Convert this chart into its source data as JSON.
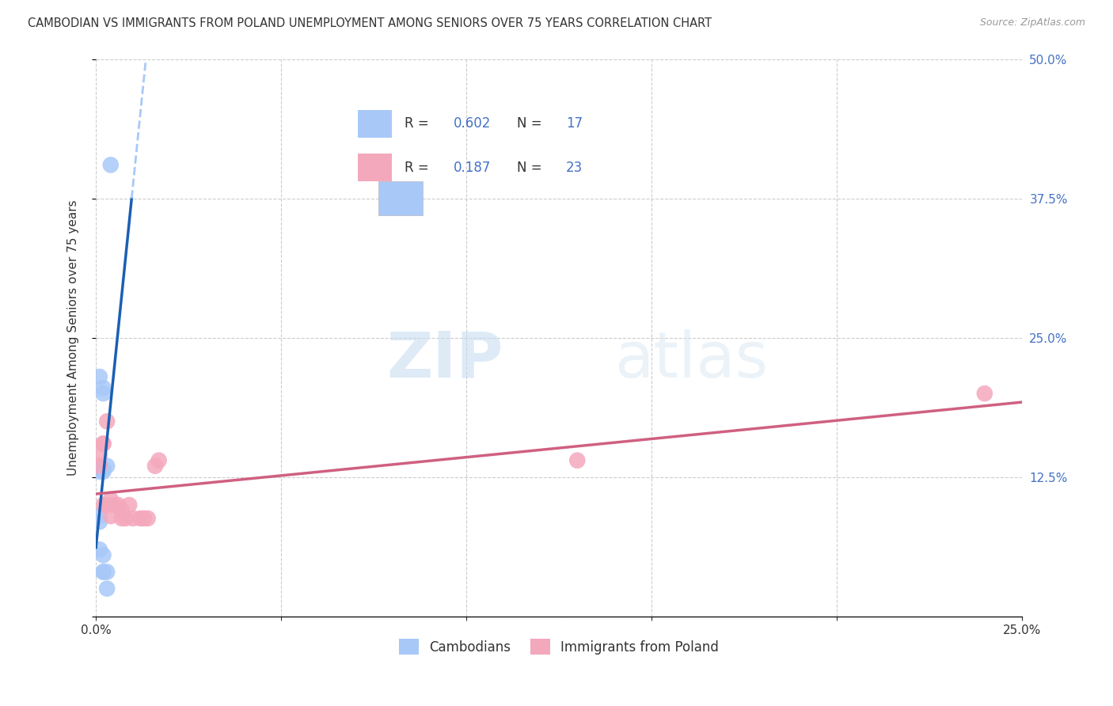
{
  "title": "CAMBODIAN VS IMMIGRANTS FROM POLAND UNEMPLOYMENT AMONG SENIORS OVER 75 YEARS CORRELATION CHART",
  "source": "Source: ZipAtlas.com",
  "ylabel": "Unemployment Among Seniors over 75 years",
  "xlim": [
    0,
    0.25
  ],
  "ylim": [
    0,
    0.5
  ],
  "xticks": [
    0.0,
    0.05,
    0.1,
    0.15,
    0.2,
    0.25
  ],
  "yticks": [
    0.0,
    0.125,
    0.25,
    0.375,
    0.5
  ],
  "cambodian_color": "#a8c8f8",
  "poland_color": "#f4a8bc",
  "trendline_cambodian_color": "#1a5fb4",
  "trendline_poland_color": "#d06080",
  "watermark_zip": "ZIP",
  "watermark_atlas": "atlas",
  "cambodian_points_x": [
    0.001,
    0.002,
    0.004,
    0.001,
    0.002,
    0.003,
    0.002,
    0.002,
    0.001,
    0.001,
    0.001,
    0.001,
    0.002,
    0.002,
    0.002,
    0.003,
    0.003
  ],
  "cambodian_points_y": [
    0.135,
    0.205,
    0.405,
    0.215,
    0.132,
    0.135,
    0.2,
    0.13,
    0.13,
    0.085,
    0.09,
    0.06,
    0.055,
    0.04,
    0.04,
    0.04,
    0.025
  ],
  "poland_points_x": [
    0.001,
    0.001,
    0.002,
    0.002,
    0.002,
    0.003,
    0.003,
    0.004,
    0.004,
    0.005,
    0.006,
    0.007,
    0.007,
    0.008,
    0.009,
    0.01,
    0.012,
    0.013,
    0.014,
    0.016,
    0.017,
    0.13,
    0.24
  ],
  "poland_points_y": [
    0.145,
    0.135,
    0.155,
    0.155,
    0.1,
    0.175,
    0.1,
    0.105,
    0.09,
    0.1,
    0.1,
    0.095,
    0.088,
    0.088,
    0.1,
    0.088,
    0.088,
    0.088,
    0.088,
    0.135,
    0.14,
    0.14,
    0.2
  ]
}
